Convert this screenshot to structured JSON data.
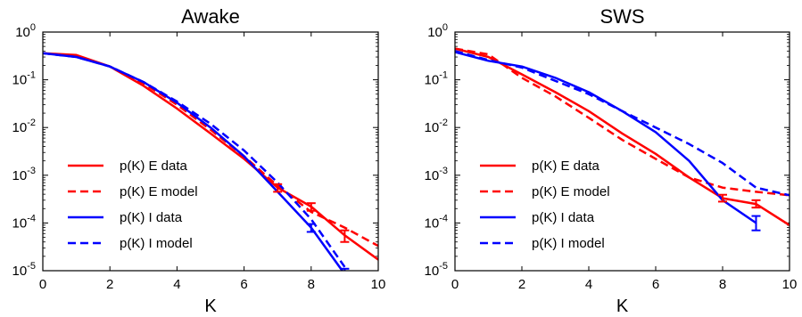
{
  "chart_data": [
    {
      "type": "line",
      "title": "Awake",
      "xlabel": "K",
      "ylabel": "",
      "xlim": [
        0,
        10
      ],
      "ylim": [
        1e-05,
        1
      ],
      "yscale": "log",
      "xticks": [
        "0",
        "2",
        "4",
        "6",
        "8",
        "10"
      ],
      "yticks": [
        "10^0",
        "10^-1",
        "10^-2",
        "10^-3",
        "10^-4",
        "10^-5"
      ],
      "legend_position": "lower-left",
      "series": [
        {
          "name": "p(K) E data",
          "color": "#ff0000",
          "dash": "solid",
          "x": [
            0,
            1,
            2,
            3,
            4,
            5,
            6,
            7,
            8,
            9,
            10
          ],
          "y": [
            0.36,
            0.33,
            0.19,
            0.075,
            0.025,
            0.0075,
            0.0022,
            0.00055,
            0.00022,
            5.5e-05,
            1.7e-05
          ]
        },
        {
          "name": "p(K) E model",
          "color": "#ff0000",
          "dash": "dashed",
          "x": [
            0,
            1,
            2,
            3,
            4,
            5,
            6,
            7,
            8,
            9,
            10
          ],
          "y": [
            0.36,
            0.31,
            0.19,
            0.085,
            0.03,
            0.009,
            0.0025,
            0.0006,
            0.00017,
            8e-05,
            3.3e-05
          ]
        },
        {
          "name": "p(K) I data",
          "color": "#0000ff",
          "dash": "solid",
          "x": [
            0,
            1,
            2,
            3,
            4,
            5,
            6,
            7,
            8,
            9
          ],
          "y": [
            0.36,
            0.3,
            0.19,
            0.09,
            0.033,
            0.01,
            0.0025,
            0.00045,
            8e-05,
            8.5e-06
          ]
        },
        {
          "name": "p(K) I model",
          "color": "#0000ff",
          "dash": "dashed",
          "x": [
            0,
            1,
            2,
            3,
            4,
            5,
            6,
            7,
            8,
            9
          ],
          "y": [
            0.36,
            0.3,
            0.19,
            0.09,
            0.035,
            0.012,
            0.0033,
            0.0007,
            0.00012,
            1.2e-05
          ]
        }
      ],
      "error_bars": [
        {
          "color": "#ff0000",
          "x": 7,
          "y": 0.00055,
          "lo": 0.00045,
          "hi": 0.00065
        },
        {
          "color": "#ff0000",
          "x": 8,
          "y": 0.00022,
          "lo": 0.00018,
          "hi": 0.00026
        },
        {
          "color": "#ff0000",
          "x": 9,
          "y": 5.5e-05,
          "lo": 4e-05,
          "hi": 7e-05
        },
        {
          "color": "#0000ff",
          "x": 8,
          "y": 8e-05,
          "lo": 6.5e-05,
          "hi": 9.5e-05
        },
        {
          "color": "#0000ff",
          "x": 9,
          "y": 8.5e-06,
          "lo": 6.5e-06,
          "hi": 1.1e-05
        }
      ]
    },
    {
      "type": "line",
      "title": "SWS",
      "xlabel": "K",
      "ylabel": "",
      "xlim": [
        0,
        10
      ],
      "ylim": [
        1e-05,
        1
      ],
      "yscale": "log",
      "xticks": [
        "0",
        "2",
        "4",
        "6",
        "8",
        "10"
      ],
      "yticks": [
        "10^0",
        "10^-1",
        "10^-2",
        "10^-3",
        "10^-4",
        "10^-5"
      ],
      "legend_position": "lower-left",
      "series": [
        {
          "name": "p(K) E data",
          "color": "#ff0000",
          "dash": "solid",
          "x": [
            0,
            1,
            2,
            3,
            4,
            5,
            6,
            7,
            8,
            9,
            10
          ],
          "y": [
            0.45,
            0.3,
            0.13,
            0.055,
            0.022,
            0.0075,
            0.0028,
            0.0009,
            0.00033,
            0.00025,
            9e-05
          ]
        },
        {
          "name": "p(K) E model",
          "color": "#ff0000",
          "dash": "dashed",
          "x": [
            0,
            1,
            2,
            3,
            4,
            5,
            6,
            7,
            8,
            9,
            10
          ],
          "y": [
            0.45,
            0.34,
            0.11,
            0.045,
            0.016,
            0.0055,
            0.0022,
            0.0009,
            0.00055,
            0.00045,
            0.00038
          ]
        },
        {
          "name": "p(K) I data",
          "color": "#0000ff",
          "dash": "solid",
          "x": [
            0,
            1,
            2,
            3,
            4,
            5,
            6,
            7,
            8,
            9
          ],
          "y": [
            0.38,
            0.25,
            0.19,
            0.11,
            0.055,
            0.022,
            0.008,
            0.002,
            0.0003,
            0.0001
          ]
        },
        {
          "name": "p(K) I model",
          "color": "#0000ff",
          "dash": "dashed",
          "x": [
            0,
            1,
            2,
            3,
            4,
            5,
            6,
            7,
            8,
            9,
            10
          ],
          "y": [
            0.4,
            0.26,
            0.18,
            0.095,
            0.05,
            0.022,
            0.01,
            0.0045,
            0.0018,
            0.00055,
            0.00038
          ]
        }
      ],
      "error_bars": [
        {
          "color": "#ff0000",
          "x": 8,
          "y": 0.00033,
          "lo": 0.00028,
          "hi": 0.00039
        },
        {
          "color": "#ff0000",
          "x": 9,
          "y": 0.00025,
          "lo": 0.00021,
          "hi": 0.0003
        },
        {
          "color": "#0000ff",
          "x": 9,
          "y": 0.0001,
          "lo": 7e-05,
          "hi": 0.00014
        }
      ]
    }
  ]
}
